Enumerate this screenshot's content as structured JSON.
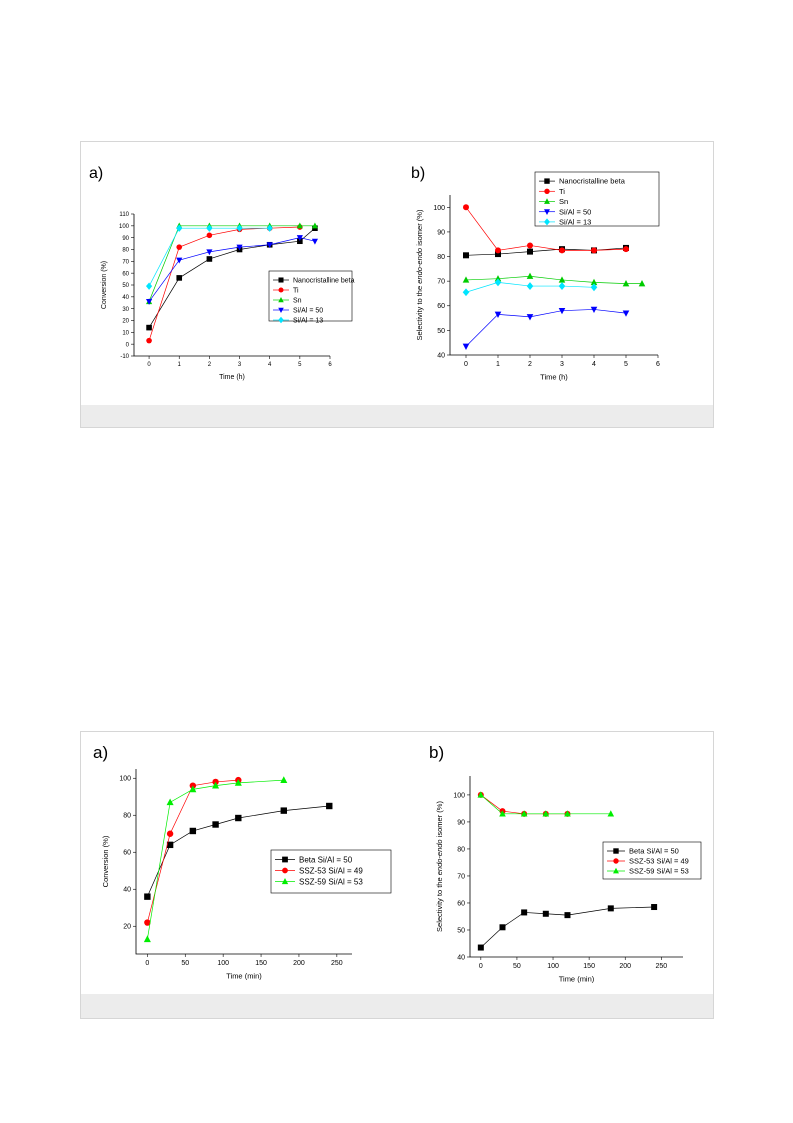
{
  "figures": [
    {
      "panels": [
        {
          "letter": "a)",
          "chart_data": {
            "type": "line",
            "xlabel": "Time (h)",
            "ylabel": "Conversion (%)",
            "xlim": [
              -0.5,
              6
            ],
            "ylim": [
              -10,
              110
            ],
            "xticks": [
              0,
              1,
              2,
              3,
              4,
              5,
              6
            ],
            "yticks": [
              -10,
              0,
              10,
              20,
              30,
              40,
              50,
              60,
              70,
              80,
              90,
              100,
              110
            ],
            "legend_position": "right",
            "series": [
              {
                "name": "Nanocristalline beta",
                "color": "#000000",
                "marker": "square",
                "x": [
                  0,
                  1,
                  2,
                  3,
                  4,
                  5,
                  5.5
                ],
                "y": [
                  14,
                  56,
                  72,
                  80,
                  84,
                  87,
                  98
                ]
              },
              {
                "name": "Ti",
                "color": "#ff0000",
                "marker": "circle",
                "x": [
                  0,
                  1,
                  2,
                  3,
                  4,
                  5
                ],
                "y": [
                  3,
                  82,
                  92,
                  97,
                  98,
                  99
                ]
              },
              {
                "name": "Sn",
                "color": "#00cc00",
                "marker": "triangle-up",
                "x": [
                  0,
                  1,
                  2,
                  3,
                  4,
                  5,
                  5.5
                ],
                "y": [
                  36,
                  100,
                  100,
                  100,
                  100,
                  100,
                  100
                ]
              },
              {
                "name": "Si/Al = 50",
                "color": "#0000ff",
                "marker": "triangle-down",
                "x": [
                  0,
                  1,
                  2,
                  3,
                  4,
                  5,
                  5.5
                ],
                "y": [
                  36,
                  71,
                  78,
                  82,
                  84,
                  90,
                  87
                ]
              },
              {
                "name": "Si/Al = 13",
                "color": "#00e5ff",
                "marker": "diamond",
                "x": [
                  0,
                  1,
                  2,
                  3,
                  4
                ],
                "y": [
                  49,
                  98,
                  98,
                  98,
                  98
                ]
              }
            ]
          }
        },
        {
          "letter": "b)",
          "chart_data": {
            "type": "line",
            "xlabel": "Time (h)",
            "ylabel_parts": [
              "Selectivity to the ",
              "endo-endo",
              " isomer (%)"
            ],
            "xlim": [
              -0.5,
              6
            ],
            "ylim": [
              40,
              105
            ],
            "xticks": [
              0,
              1,
              2,
              3,
              4,
              5,
              6
            ],
            "yticks": [
              40,
              50,
              60,
              70,
              80,
              90,
              100
            ],
            "legend_position": "top-right",
            "series": [
              {
                "name": "Nanocristalline beta",
                "color": "#000000",
                "marker": "square",
                "x": [
                  0,
                  1,
                  2,
                  3,
                  4,
                  5
                ],
                "y": [
                  80.5,
                  81,
                  82,
                  83,
                  82.5,
                  83.5
                ]
              },
              {
                "name": "Ti",
                "color": "#ff0000",
                "marker": "circle",
                "x": [
                  0,
                  1,
                  2,
                  3,
                  4,
                  5
                ],
                "y": [
                  100,
                  82.5,
                  84.5,
                  82.5,
                  82.5,
                  83
                ]
              },
              {
                "name": "Sn",
                "color": "#00cc00",
                "marker": "triangle-up",
                "x": [
                  0,
                  1,
                  2,
                  3,
                  4,
                  5,
                  5.5
                ],
                "y": [
                  70.5,
                  71,
                  72,
                  70.5,
                  69.5,
                  69,
                  69
                ]
              },
              {
                "name": "Si/Al = 50",
                "color": "#0000ff",
                "marker": "triangle-down",
                "x": [
                  0,
                  1,
                  2,
                  3,
                  4,
                  5
                ],
                "y": [
                  43.5,
                  56.5,
                  55.5,
                  58,
                  58.5,
                  57
                ]
              },
              {
                "name": "Si/Al = 13",
                "color": "#00e5ff",
                "marker": "diamond",
                "x": [
                  0,
                  1,
                  2,
                  3,
                  4
                ],
                "y": [
                  65.5,
                  69.5,
                  68,
                  68,
                  67.5
                ]
              }
            ]
          }
        }
      ]
    },
    {
      "panels": [
        {
          "letter": "a)",
          "chart_data": {
            "type": "line",
            "xlabel": "Time (min)",
            "ylabel": "Conversion (%)",
            "xlim": [
              -15,
              270
            ],
            "ylim": [
              5,
              105
            ],
            "xticks": [
              0,
              50,
              100,
              150,
              200,
              250
            ],
            "yticks": [
              20,
              40,
              60,
              80,
              100
            ],
            "legend_position": "right",
            "series": [
              {
                "name": "Beta Si/Al = 50",
                "color": "#000000",
                "marker": "square",
                "x": [
                  0,
                  30,
                  60,
                  90,
                  120,
                  180,
                  240
                ],
                "y": [
                  36,
                  64,
                  71.5,
                  75,
                  78.5,
                  82.5,
                  85
                ]
              },
              {
                "name": "SSZ-53 Si/Al = 49",
                "color": "#ff0000",
                "marker": "circle",
                "x": [
                  0,
                  30,
                  60,
                  90,
                  120
                ],
                "y": [
                  22,
                  70,
                  96,
                  98,
                  99
                ]
              },
              {
                "name": "SSZ-59 Si/Al = 53",
                "color": "#00ee00",
                "marker": "triangle-up",
                "x": [
                  0,
                  30,
                  60,
                  90,
                  120,
                  180
                ],
                "y": [
                  13,
                  87,
                  94,
                  96,
                  97.5,
                  99
                ]
              }
            ]
          }
        },
        {
          "letter": "b)",
          "chart_data": {
            "type": "line",
            "xlabel": "Time (min)",
            "ylabel_parts": [
              "Selectivity to the ",
              "endo-endo",
              " isomer (%)"
            ],
            "xlim": [
              -15,
              280
            ],
            "ylim": [
              40,
              107
            ],
            "xticks": [
              0,
              50,
              100,
              150,
              200,
              250
            ],
            "yticks": [
              40,
              50,
              60,
              70,
              80,
              90,
              100
            ],
            "legend_position": "right",
            "series": [
              {
                "name": "Beta Si/Al = 50",
                "color": "#000000",
                "marker": "square",
                "x": [
                  0,
                  30,
                  60,
                  90,
                  120,
                  180,
                  240
                ],
                "y": [
                  43.5,
                  51,
                  56.5,
                  56,
                  55.5,
                  58,
                  58.5
                ]
              },
              {
                "name": "SSZ-53 Si/Al = 49",
                "color": "#ff0000",
                "marker": "circle",
                "x": [
                  0,
                  30,
                  60,
                  90,
                  120
                ],
                "y": [
                  100,
                  94,
                  93,
                  93,
                  93
                ]
              },
              {
                "name": "SSZ-59 Si/Al = 53",
                "color": "#00ee00",
                "marker": "triangle-up",
                "x": [
                  0,
                  30,
                  60,
                  90,
                  120,
                  180
                ],
                "y": [
                  100,
                  93,
                  93,
                  93,
                  93,
                  93
                ]
              }
            ]
          }
        }
      ]
    }
  ]
}
